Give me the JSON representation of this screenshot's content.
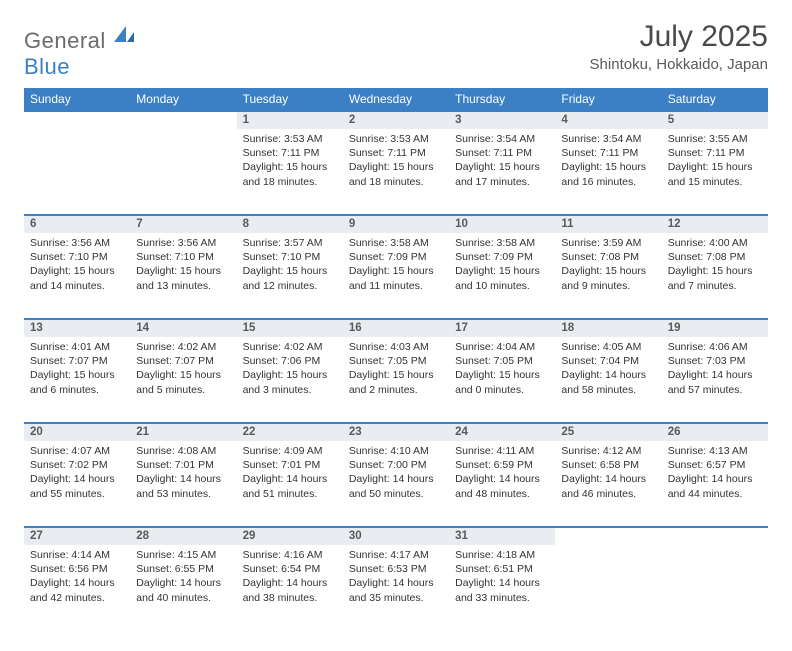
{
  "logo": {
    "part1": "General",
    "part2": "Blue"
  },
  "title": "July 2025",
  "location": "Shintoku, Hokkaido, Japan",
  "colors": {
    "accent": "#3b7fc4",
    "header_text": "#ffffff",
    "daynum_bg": "#e9edf1",
    "body_text": "#333333",
    "title_text": "#4a4a4a",
    "logo_gray": "#6b6b6b"
  },
  "day_headers": [
    "Sunday",
    "Monday",
    "Tuesday",
    "Wednesday",
    "Thursday",
    "Friday",
    "Saturday"
  ],
  "weeks": [
    {
      "nums": [
        "",
        "",
        "1",
        "2",
        "3",
        "4",
        "5"
      ],
      "cells": [
        null,
        null,
        {
          "sunrise": "Sunrise: 3:53 AM",
          "sunset": "Sunset: 7:11 PM",
          "day1": "Daylight: 15 hours",
          "day2": "and 18 minutes."
        },
        {
          "sunrise": "Sunrise: 3:53 AM",
          "sunset": "Sunset: 7:11 PM",
          "day1": "Daylight: 15 hours",
          "day2": "and 18 minutes."
        },
        {
          "sunrise": "Sunrise: 3:54 AM",
          "sunset": "Sunset: 7:11 PM",
          "day1": "Daylight: 15 hours",
          "day2": "and 17 minutes."
        },
        {
          "sunrise": "Sunrise: 3:54 AM",
          "sunset": "Sunset: 7:11 PM",
          "day1": "Daylight: 15 hours",
          "day2": "and 16 minutes."
        },
        {
          "sunrise": "Sunrise: 3:55 AM",
          "sunset": "Sunset: 7:11 PM",
          "day1": "Daylight: 15 hours",
          "day2": "and 15 minutes."
        }
      ]
    },
    {
      "nums": [
        "6",
        "7",
        "8",
        "9",
        "10",
        "11",
        "12"
      ],
      "cells": [
        {
          "sunrise": "Sunrise: 3:56 AM",
          "sunset": "Sunset: 7:10 PM",
          "day1": "Daylight: 15 hours",
          "day2": "and 14 minutes."
        },
        {
          "sunrise": "Sunrise: 3:56 AM",
          "sunset": "Sunset: 7:10 PM",
          "day1": "Daylight: 15 hours",
          "day2": "and 13 minutes."
        },
        {
          "sunrise": "Sunrise: 3:57 AM",
          "sunset": "Sunset: 7:10 PM",
          "day1": "Daylight: 15 hours",
          "day2": "and 12 minutes."
        },
        {
          "sunrise": "Sunrise: 3:58 AM",
          "sunset": "Sunset: 7:09 PM",
          "day1": "Daylight: 15 hours",
          "day2": "and 11 minutes."
        },
        {
          "sunrise": "Sunrise: 3:58 AM",
          "sunset": "Sunset: 7:09 PM",
          "day1": "Daylight: 15 hours",
          "day2": "and 10 minutes."
        },
        {
          "sunrise": "Sunrise: 3:59 AM",
          "sunset": "Sunset: 7:08 PM",
          "day1": "Daylight: 15 hours",
          "day2": "and 9 minutes."
        },
        {
          "sunrise": "Sunrise: 4:00 AM",
          "sunset": "Sunset: 7:08 PM",
          "day1": "Daylight: 15 hours",
          "day2": "and 7 minutes."
        }
      ]
    },
    {
      "nums": [
        "13",
        "14",
        "15",
        "16",
        "17",
        "18",
        "19"
      ],
      "cells": [
        {
          "sunrise": "Sunrise: 4:01 AM",
          "sunset": "Sunset: 7:07 PM",
          "day1": "Daylight: 15 hours",
          "day2": "and 6 minutes."
        },
        {
          "sunrise": "Sunrise: 4:02 AM",
          "sunset": "Sunset: 7:07 PM",
          "day1": "Daylight: 15 hours",
          "day2": "and 5 minutes."
        },
        {
          "sunrise": "Sunrise: 4:02 AM",
          "sunset": "Sunset: 7:06 PM",
          "day1": "Daylight: 15 hours",
          "day2": "and 3 minutes."
        },
        {
          "sunrise": "Sunrise: 4:03 AM",
          "sunset": "Sunset: 7:05 PM",
          "day1": "Daylight: 15 hours",
          "day2": "and 2 minutes."
        },
        {
          "sunrise": "Sunrise: 4:04 AM",
          "sunset": "Sunset: 7:05 PM",
          "day1": "Daylight: 15 hours",
          "day2": "and 0 minutes."
        },
        {
          "sunrise": "Sunrise: 4:05 AM",
          "sunset": "Sunset: 7:04 PM",
          "day1": "Daylight: 14 hours",
          "day2": "and 58 minutes."
        },
        {
          "sunrise": "Sunrise: 4:06 AM",
          "sunset": "Sunset: 7:03 PM",
          "day1": "Daylight: 14 hours",
          "day2": "and 57 minutes."
        }
      ]
    },
    {
      "nums": [
        "20",
        "21",
        "22",
        "23",
        "24",
        "25",
        "26"
      ],
      "cells": [
        {
          "sunrise": "Sunrise: 4:07 AM",
          "sunset": "Sunset: 7:02 PM",
          "day1": "Daylight: 14 hours",
          "day2": "and 55 minutes."
        },
        {
          "sunrise": "Sunrise: 4:08 AM",
          "sunset": "Sunset: 7:01 PM",
          "day1": "Daylight: 14 hours",
          "day2": "and 53 minutes."
        },
        {
          "sunrise": "Sunrise: 4:09 AM",
          "sunset": "Sunset: 7:01 PM",
          "day1": "Daylight: 14 hours",
          "day2": "and 51 minutes."
        },
        {
          "sunrise": "Sunrise: 4:10 AM",
          "sunset": "Sunset: 7:00 PM",
          "day1": "Daylight: 14 hours",
          "day2": "and 50 minutes."
        },
        {
          "sunrise": "Sunrise: 4:11 AM",
          "sunset": "Sunset: 6:59 PM",
          "day1": "Daylight: 14 hours",
          "day2": "and 48 minutes."
        },
        {
          "sunrise": "Sunrise: 4:12 AM",
          "sunset": "Sunset: 6:58 PM",
          "day1": "Daylight: 14 hours",
          "day2": "and 46 minutes."
        },
        {
          "sunrise": "Sunrise: 4:13 AM",
          "sunset": "Sunset: 6:57 PM",
          "day1": "Daylight: 14 hours",
          "day2": "and 44 minutes."
        }
      ]
    },
    {
      "nums": [
        "27",
        "28",
        "29",
        "30",
        "31",
        "",
        ""
      ],
      "cells": [
        {
          "sunrise": "Sunrise: 4:14 AM",
          "sunset": "Sunset: 6:56 PM",
          "day1": "Daylight: 14 hours",
          "day2": "and 42 minutes."
        },
        {
          "sunrise": "Sunrise: 4:15 AM",
          "sunset": "Sunset: 6:55 PM",
          "day1": "Daylight: 14 hours",
          "day2": "and 40 minutes."
        },
        {
          "sunrise": "Sunrise: 4:16 AM",
          "sunset": "Sunset: 6:54 PM",
          "day1": "Daylight: 14 hours",
          "day2": "and 38 minutes."
        },
        {
          "sunrise": "Sunrise: 4:17 AM",
          "sunset": "Sunset: 6:53 PM",
          "day1": "Daylight: 14 hours",
          "day2": "and 35 minutes."
        },
        {
          "sunrise": "Sunrise: 4:18 AM",
          "sunset": "Sunset: 6:51 PM",
          "day1": "Daylight: 14 hours",
          "day2": "and 33 minutes."
        },
        null,
        null
      ]
    }
  ]
}
